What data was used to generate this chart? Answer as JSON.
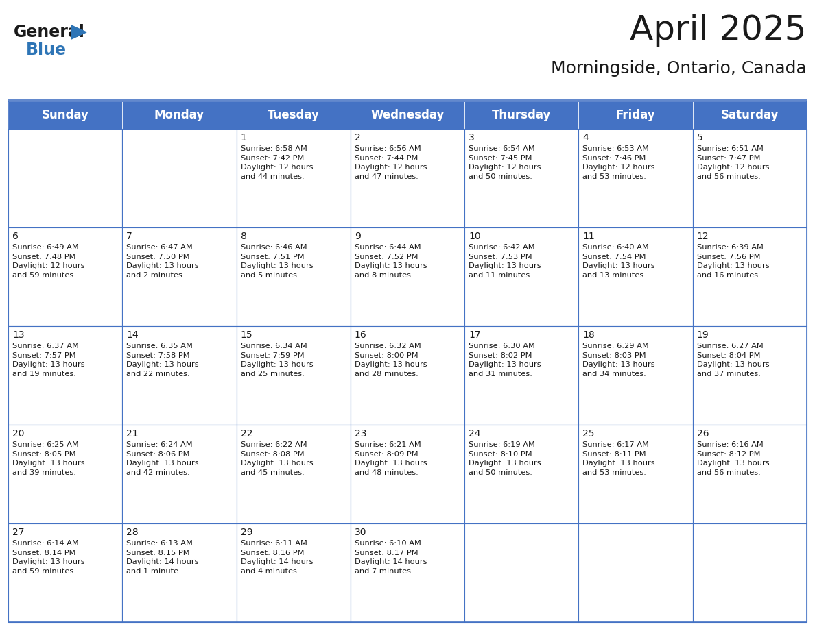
{
  "title": "April 2025",
  "subtitle": "Morningside, Ontario, Canada",
  "header_bg": "#4472C4",
  "header_text_color": "#FFFFFF",
  "cell_bg": "#FFFFFF",
  "border_color": "#4472C4",
  "days_of_week": [
    "Sunday",
    "Monday",
    "Tuesday",
    "Wednesday",
    "Thursday",
    "Friday",
    "Saturday"
  ],
  "title_fontsize": 36,
  "subtitle_fontsize": 18,
  "header_fontsize": 12,
  "cell_fontsize": 8.2,
  "day_num_fontsize": 10,
  "logo_general_color": "#1a1a1a",
  "logo_blue_color": "#2E75B6",
  "calendar_data": [
    [
      {
        "day": "",
        "info": ""
      },
      {
        "day": "",
        "info": ""
      },
      {
        "day": "1",
        "info": "Sunrise: 6:58 AM\nSunset: 7:42 PM\nDaylight: 12 hours\nand 44 minutes."
      },
      {
        "day": "2",
        "info": "Sunrise: 6:56 AM\nSunset: 7:44 PM\nDaylight: 12 hours\nand 47 minutes."
      },
      {
        "day": "3",
        "info": "Sunrise: 6:54 AM\nSunset: 7:45 PM\nDaylight: 12 hours\nand 50 minutes."
      },
      {
        "day": "4",
        "info": "Sunrise: 6:53 AM\nSunset: 7:46 PM\nDaylight: 12 hours\nand 53 minutes."
      },
      {
        "day": "5",
        "info": "Sunrise: 6:51 AM\nSunset: 7:47 PM\nDaylight: 12 hours\nand 56 minutes."
      }
    ],
    [
      {
        "day": "6",
        "info": "Sunrise: 6:49 AM\nSunset: 7:48 PM\nDaylight: 12 hours\nand 59 minutes."
      },
      {
        "day": "7",
        "info": "Sunrise: 6:47 AM\nSunset: 7:50 PM\nDaylight: 13 hours\nand 2 minutes."
      },
      {
        "day": "8",
        "info": "Sunrise: 6:46 AM\nSunset: 7:51 PM\nDaylight: 13 hours\nand 5 minutes."
      },
      {
        "day": "9",
        "info": "Sunrise: 6:44 AM\nSunset: 7:52 PM\nDaylight: 13 hours\nand 8 minutes."
      },
      {
        "day": "10",
        "info": "Sunrise: 6:42 AM\nSunset: 7:53 PM\nDaylight: 13 hours\nand 11 minutes."
      },
      {
        "day": "11",
        "info": "Sunrise: 6:40 AM\nSunset: 7:54 PM\nDaylight: 13 hours\nand 13 minutes."
      },
      {
        "day": "12",
        "info": "Sunrise: 6:39 AM\nSunset: 7:56 PM\nDaylight: 13 hours\nand 16 minutes."
      }
    ],
    [
      {
        "day": "13",
        "info": "Sunrise: 6:37 AM\nSunset: 7:57 PM\nDaylight: 13 hours\nand 19 minutes."
      },
      {
        "day": "14",
        "info": "Sunrise: 6:35 AM\nSunset: 7:58 PM\nDaylight: 13 hours\nand 22 minutes."
      },
      {
        "day": "15",
        "info": "Sunrise: 6:34 AM\nSunset: 7:59 PM\nDaylight: 13 hours\nand 25 minutes."
      },
      {
        "day": "16",
        "info": "Sunrise: 6:32 AM\nSunset: 8:00 PM\nDaylight: 13 hours\nand 28 minutes."
      },
      {
        "day": "17",
        "info": "Sunrise: 6:30 AM\nSunset: 8:02 PM\nDaylight: 13 hours\nand 31 minutes."
      },
      {
        "day": "18",
        "info": "Sunrise: 6:29 AM\nSunset: 8:03 PM\nDaylight: 13 hours\nand 34 minutes."
      },
      {
        "day": "19",
        "info": "Sunrise: 6:27 AM\nSunset: 8:04 PM\nDaylight: 13 hours\nand 37 minutes."
      }
    ],
    [
      {
        "day": "20",
        "info": "Sunrise: 6:25 AM\nSunset: 8:05 PM\nDaylight: 13 hours\nand 39 minutes."
      },
      {
        "day": "21",
        "info": "Sunrise: 6:24 AM\nSunset: 8:06 PM\nDaylight: 13 hours\nand 42 minutes."
      },
      {
        "day": "22",
        "info": "Sunrise: 6:22 AM\nSunset: 8:08 PM\nDaylight: 13 hours\nand 45 minutes."
      },
      {
        "day": "23",
        "info": "Sunrise: 6:21 AM\nSunset: 8:09 PM\nDaylight: 13 hours\nand 48 minutes."
      },
      {
        "day": "24",
        "info": "Sunrise: 6:19 AM\nSunset: 8:10 PM\nDaylight: 13 hours\nand 50 minutes."
      },
      {
        "day": "25",
        "info": "Sunrise: 6:17 AM\nSunset: 8:11 PM\nDaylight: 13 hours\nand 53 minutes."
      },
      {
        "day": "26",
        "info": "Sunrise: 6:16 AM\nSunset: 8:12 PM\nDaylight: 13 hours\nand 56 minutes."
      }
    ],
    [
      {
        "day": "27",
        "info": "Sunrise: 6:14 AM\nSunset: 8:14 PM\nDaylight: 13 hours\nand 59 minutes."
      },
      {
        "day": "28",
        "info": "Sunrise: 6:13 AM\nSunset: 8:15 PM\nDaylight: 14 hours\nand 1 minute."
      },
      {
        "day": "29",
        "info": "Sunrise: 6:11 AM\nSunset: 8:16 PM\nDaylight: 14 hours\nand 4 minutes."
      },
      {
        "day": "30",
        "info": "Sunrise: 6:10 AM\nSunset: 8:17 PM\nDaylight: 14 hours\nand 7 minutes."
      },
      {
        "day": "",
        "info": ""
      },
      {
        "day": "",
        "info": ""
      },
      {
        "day": "",
        "info": ""
      }
    ]
  ]
}
